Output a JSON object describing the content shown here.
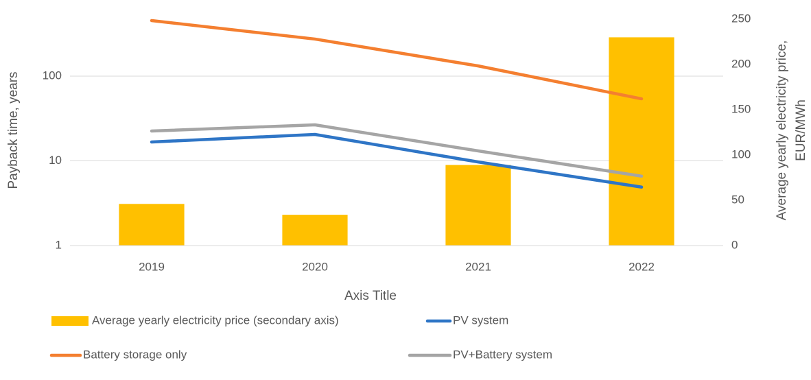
{
  "chart_data": {
    "type": "bar",
    "categories": [
      "2019",
      "2020",
      "2021",
      "2022"
    ],
    "x_label": "Axis Title",
    "y_label": "Payback time, years",
    "y2_label": [
      "Average yearly electricity price,",
      "EUR/MWh"
    ],
    "ylim": [
      1,
      470
    ],
    "yticks": [
      1,
      10,
      100
    ],
    "log_scale": true,
    "y2lim": [
      0,
      250
    ],
    "y2ticks": [
      0,
      50,
      100,
      150,
      200,
      250
    ],
    "grid": true,
    "legend": "bottom",
    "series": [
      {
        "name": "Average yearly electricity price (secondary axis)",
        "type": "bar",
        "axis": "y2",
        "color": "#ffc000",
        "values": [
          46,
          34,
          89,
          230
        ]
      },
      {
        "name": "PV system",
        "type": "line",
        "color": "#2e75c6",
        "values": [
          16.7,
          20.5,
          9.7,
          4.9
        ]
      },
      {
        "name": "Battery storage only",
        "type": "line",
        "color": "#f47f30",
        "values": [
          453,
          274,
          132,
          54
        ]
      },
      {
        "name": "PV+Battery system",
        "type": "line",
        "color": "#a5a5a5",
        "values": [
          22.5,
          26.6,
          13.1,
          6.6
        ]
      }
    ]
  }
}
